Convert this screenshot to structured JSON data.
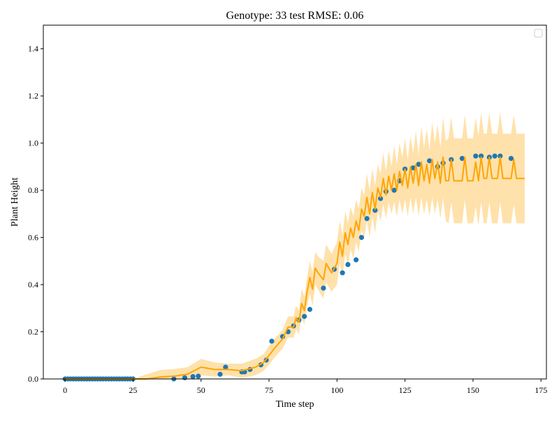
{
  "chart_data": {
    "type": "scatter",
    "title": "Genotype: 33 test RMSE: 0.06",
    "xlabel": "Time step",
    "ylabel": "Plant Height",
    "xlim": [
      -8,
      177
    ],
    "ylim": [
      0.0,
      1.5
    ],
    "x_ticks": [
      0,
      25,
      50,
      75,
      100,
      125,
      150,
      175
    ],
    "y_ticks": [
      0.0,
      0.2,
      0.4,
      0.6,
      0.8,
      1.0,
      1.2,
      1.4
    ],
    "grid": false,
    "legend": {
      "position": "top-right",
      "entries": []
    },
    "colors": {
      "observed": "#1f77b4",
      "prediction": "#ffa500",
      "band": "#ffa500",
      "frame": "#000000"
    },
    "series": [
      {
        "kind": "scatter",
        "x": [
          0,
          1,
          2,
          3,
          4,
          5,
          6,
          7,
          8,
          9,
          10,
          11,
          12,
          13,
          14,
          15,
          16,
          17,
          18,
          19,
          20,
          21,
          22,
          23,
          24,
          25,
          40,
          44,
          47,
          49,
          57,
          59,
          65,
          66,
          68,
          72,
          74,
          76,
          80,
          82,
          84,
          86,
          88,
          90,
          95,
          99,
          102,
          104,
          107,
          109,
          111,
          114,
          116,
          118,
          121,
          123,
          125,
          128,
          130,
          134,
          137,
          139,
          142,
          146,
          151,
          153,
          156,
          158,
          160,
          164
        ],
        "y": [
          0,
          0,
          0,
          0,
          0,
          0,
          0,
          0,
          0,
          0,
          0,
          0,
          0,
          0,
          0,
          0,
          0,
          0,
          0,
          0,
          0,
          0,
          0,
          0,
          0,
          0,
          0.0,
          0.005,
          0.01,
          0.012,
          0.02,
          0.05,
          0.03,
          0.03,
          0.04,
          0.06,
          0.08,
          0.16,
          0.18,
          0.2,
          0.225,
          0.25,
          0.265,
          0.295,
          0.385,
          0.465,
          0.45,
          0.485,
          0.505,
          0.6,
          0.68,
          0.715,
          0.765,
          0.795,
          0.8,
          0.84,
          0.89,
          0.895,
          0.91,
          0.925,
          0.9,
          0.915,
          0.93,
          0.935,
          0.945,
          0.945,
          0.94,
          0.945,
          0.945,
          0.935
        ]
      },
      {
        "kind": "line",
        "x": [
          0,
          25,
          30,
          35,
          40,
          45,
          50,
          55,
          60,
          65,
          70,
          73,
          75,
          77,
          80,
          82,
          84,
          85,
          86,
          87,
          88,
          89,
          90,
          91,
          92,
          93,
          95,
          96,
          98,
          100,
          101,
          102,
          103,
          104,
          105,
          106,
          107,
          108,
          109,
          110,
          111,
          112,
          113,
          114,
          115,
          116,
          117,
          118,
          119,
          120,
          121,
          122,
          123,
          124,
          125,
          126,
          127,
          128,
          129,
          130,
          131,
          132,
          133,
          134,
          135,
          136,
          137,
          138,
          139,
          140,
          141,
          142,
          143,
          144,
          145,
          146,
          147,
          148,
          149,
          150,
          151,
          152,
          153,
          154,
          155,
          156,
          157,
          158,
          159,
          160,
          161,
          162,
          163,
          164,
          165,
          166,
          167,
          168,
          169
        ],
        "y": [
          0,
          0,
          0.0,
          0.008,
          0.012,
          0.02,
          0.05,
          0.04,
          0.04,
          0.035,
          0.05,
          0.07,
          0.1,
          0.13,
          0.17,
          0.22,
          0.22,
          0.26,
          0.24,
          0.32,
          0.29,
          0.37,
          0.43,
          0.38,
          0.47,
          0.45,
          0.42,
          0.49,
          0.45,
          0.49,
          0.58,
          0.52,
          0.62,
          0.57,
          0.64,
          0.6,
          0.67,
          0.63,
          0.72,
          0.69,
          0.77,
          0.7,
          0.79,
          0.72,
          0.81,
          0.77,
          0.85,
          0.78,
          0.86,
          0.8,
          0.87,
          0.8,
          0.88,
          0.82,
          0.89,
          0.81,
          0.9,
          0.83,
          0.91,
          0.82,
          0.92,
          0.84,
          0.91,
          0.83,
          0.93,
          0.85,
          0.92,
          0.83,
          0.94,
          0.84,
          0.84,
          0.93,
          0.84,
          0.84,
          0.84,
          0.84,
          0.94,
          0.84,
          0.84,
          0.84,
          0.92,
          0.84,
          0.94,
          0.85,
          0.85,
          0.94,
          0.85,
          0.85,
          0.85,
          0.94,
          0.85,
          0.85,
          0.85,
          0.85,
          0.93,
          0.85,
          0.85,
          0.85,
          0.85
        ]
      }
    ],
    "band_halfwidth": [
      0,
      0,
      0.02,
      0.03,
      0.03,
      0.03,
      0.035,
      0.03,
      0.025,
      0.03,
      0.035,
      0.035,
      0.04,
      0.04,
      0.04,
      0.045,
      0.045,
      0.05,
      0.05,
      0.06,
      0.06,
      0.06,
      0.07,
      0.07,
      0.07,
      0.07,
      0.08,
      0.08,
      0.08,
      0.09,
      0.09,
      0.09,
      0.09,
      0.09,
      0.09,
      0.09,
      0.09,
      0.09,
      0.09,
      0.09,
      0.1,
      0.1,
      0.1,
      0.1,
      0.1,
      0.1,
      0.11,
      0.1,
      0.11,
      0.1,
      0.12,
      0.11,
      0.12,
      0.12,
      0.13,
      0.12,
      0.13,
      0.13,
      0.14,
      0.13,
      0.15,
      0.14,
      0.15,
      0.14,
      0.16,
      0.15,
      0.16,
      0.15,
      0.17,
      0.17,
      0.18,
      0.18,
      0.18,
      0.18,
      0.18,
      0.18,
      0.18,
      0.18,
      0.18,
      0.18,
      0.19,
      0.19,
      0.19,
      0.19,
      0.19,
      0.19,
      0.19,
      0.19,
      0.19,
      0.19,
      0.19,
      0.19,
      0.19,
      0.19,
      0.19,
      0.19,
      0.19,
      0.19,
      0.19
    ]
  }
}
